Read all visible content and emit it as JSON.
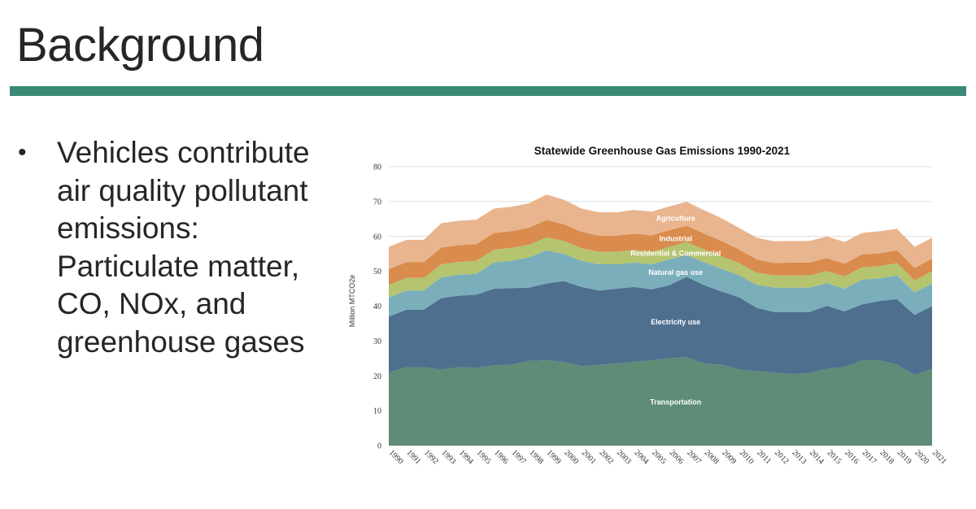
{
  "slide": {
    "title": "Background",
    "rule_color": "#3a8a76",
    "bullets": [
      {
        "text": "Vehicles contribute air quality pollutant emissions: Particulate matter, CO, NOx, and greenhouse gases"
      }
    ]
  },
  "chart_data": {
    "type": "area",
    "stacked": true,
    "title": "Statewide Greenhouse Gas Emissions 1990-2021",
    "xlabel": "",
    "ylabel": "Million  MTCO2e",
    "ylim": [
      0,
      80
    ],
    "yticks": [
      0,
      10,
      20,
      30,
      40,
      50,
      60,
      70,
      80
    ],
    "grid": true,
    "legend": "none (labels drawn inside areas)",
    "x": [
      "1990",
      "1991",
      "1992",
      "1993",
      "1994",
      "1995",
      "1996",
      "1997",
      "1998",
      "1999",
      "2000",
      "2001",
      "2002",
      "2003",
      "2004",
      "2005",
      "2006",
      "2007",
      "2008",
      "2009",
      "2010",
      "2011",
      "2012",
      "2013",
      "2014",
      "2015",
      "2016",
      "2017",
      "2018",
      "2019",
      "2020",
      "2021"
    ],
    "series": [
      {
        "name": "Transportation",
        "color": "#5e8c76",
        "values": [
          21.0,
          22.5,
          22.5,
          21.8,
          22.5,
          22.3,
          23.0,
          23.2,
          24.3,
          24.5,
          24.0,
          22.8,
          23.2,
          23.5,
          24.0,
          24.5,
          25.0,
          25.4,
          23.5,
          23.2,
          21.8,
          21.3,
          21.0,
          20.5,
          20.8,
          22.0,
          22.5,
          24.5,
          24.5,
          23.2,
          20.3,
          22.0
        ]
      },
      {
        "name": "Electricity use",
        "color": "#4f6f8f",
        "values": [
          16.0,
          16.5,
          16.5,
          20.5,
          20.5,
          21.0,
          22.0,
          22.0,
          21.0,
          22.0,
          23.2,
          22.7,
          21.3,
          21.5,
          21.5,
          20.3,
          21.0,
          23.0,
          22.5,
          21.0,
          20.7,
          18.2,
          17.3,
          17.8,
          17.5,
          18.1,
          16.0,
          16.0,
          17.0,
          18.8,
          17.2,
          18.0
        ]
      },
      {
        "name": "Natural gas use",
        "color": "#7aaebb",
        "values": [
          5.5,
          5.5,
          5.5,
          6.0,
          6.0,
          6.0,
          7.5,
          7.8,
          8.7,
          9.5,
          7.8,
          7.5,
          7.5,
          7.0,
          7.0,
          7.2,
          7.4,
          6.3,
          6.6,
          6.5,
          6.3,
          6.6,
          7.0,
          7.0,
          7.0,
          6.5,
          6.5,
          7.1,
          6.5,
          6.8,
          6.5,
          6.5
        ]
      },
      {
        "name": "Residential & Commercial",
        "color": "#b5c46e",
        "values": [
          3.6,
          3.6,
          3.6,
          3.7,
          3.7,
          3.7,
          3.7,
          3.7,
          3.6,
          3.7,
          3.7,
          3.6,
          3.6,
          3.6,
          3.6,
          3.6,
          3.6,
          3.7,
          3.6,
          3.6,
          3.5,
          3.5,
          3.5,
          3.5,
          3.5,
          3.5,
          3.5,
          3.5,
          3.5,
          3.5,
          3.4,
          3.5
        ]
      },
      {
        "name": "Industrial",
        "color": "#d98c4e",
        "values": [
          4.5,
          4.5,
          4.5,
          4.8,
          4.8,
          4.8,
          4.8,
          4.8,
          4.9,
          5.0,
          4.8,
          4.7,
          4.6,
          4.6,
          4.7,
          4.7,
          4.8,
          4.7,
          4.6,
          4.4,
          3.9,
          3.8,
          3.6,
          3.7,
          3.7,
          3.7,
          3.7,
          3.7,
          3.7,
          3.7,
          3.6,
          3.6
        ]
      },
      {
        "name": "Agriculture",
        "color": "#e8b58e",
        "values": [
          6.4,
          6.4,
          6.4,
          7.0,
          7.0,
          7.0,
          7.0,
          7.0,
          7.0,
          7.3,
          7.0,
          6.7,
          6.7,
          6.7,
          6.8,
          6.8,
          6.8,
          6.8,
          6.7,
          6.5,
          6.2,
          6.2,
          6.2,
          6.2,
          6.2,
          6.2,
          6.2,
          6.2,
          6.3,
          6.2,
          6.0,
          6.0
        ]
      }
    ]
  }
}
